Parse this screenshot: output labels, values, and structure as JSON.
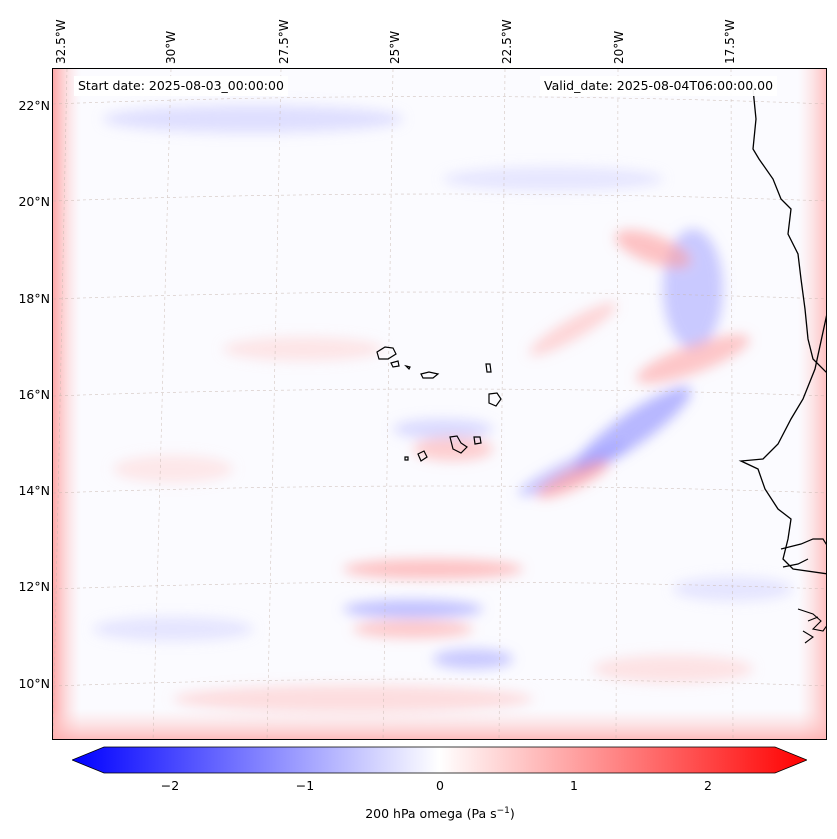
{
  "header": {
    "start_date": "Start date: 2025-08-03_00:00:00",
    "valid_date": "Valid_date: 2025-08-04T06:00:00.00"
  },
  "lon_labels": [
    "32.5°W",
    "30°W",
    "27.5°W",
    "25°W",
    "22.5°W",
    "20°W",
    "17.5°W"
  ],
  "lat_labels": [
    "22°N",
    "20°N",
    "18°N",
    "16°N",
    "14°N",
    "12°N",
    "10°N"
  ],
  "colorbar": {
    "ticks": [
      "−2",
      "−1",
      "0",
      "1",
      "2"
    ],
    "label": "200 hPa omega (Pa s",
    "label_sup": "−1",
    "label_end": ")",
    "vmin": -2.6,
    "vmax": 2.6,
    "negative_color": "#0000ff",
    "positive_color": "#ff0000",
    "center_color": "#ffffff"
  }
}
